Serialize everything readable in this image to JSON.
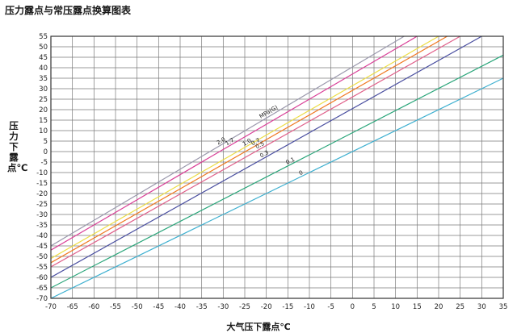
{
  "chart_data": {
    "type": "line",
    "title": "压力露点与常压露点换算图表",
    "xlabel": "大气压下露点℃",
    "ylabel": "压力下露点℃",
    "xlim": [
      -70,
      35
    ],
    "ylim": [
      -70,
      55
    ],
    "x_ticks": [
      -70,
      -65,
      -60,
      -55,
      -50,
      -45,
      -40,
      -35,
      -30,
      -25,
      -20,
      -15,
      -10,
      -5,
      0,
      5,
      10,
      15,
      20,
      25,
      30,
      35
    ],
    "y_ticks": [
      55,
      50,
      45,
      40,
      35,
      30,
      25,
      20,
      15,
      10,
      5,
      0,
      -5,
      -10,
      -15,
      -20,
      -25,
      -30,
      -35,
      -40,
      -45,
      -50,
      -55,
      -60,
      -65,
      -70
    ],
    "grid": true,
    "axis_unit_label": "MPa(G)",
    "series": [
      {
        "name": "0",
        "color": "#3fb0d0",
        "points": [
          [
            -70,
            -70
          ],
          [
            35,
            35
          ]
        ]
      },
      {
        "name": "0.1",
        "color": "#2aa57a",
        "points": [
          [
            -70,
            -65
          ],
          [
            35,
            46
          ]
        ]
      },
      {
        "name": "0.3",
        "color": "#4a4fa0",
        "points": [
          [
            -70,
            -60
          ],
          [
            30,
            55
          ]
        ]
      },
      {
        "name": "0.5",
        "color": "#e0608a",
        "points": [
          [
            -70,
            -55
          ],
          [
            25,
            55
          ]
        ]
      },
      {
        "name": "0.7",
        "color": "#f07820",
        "points": [
          [
            -70,
            -53
          ],
          [
            22,
            55
          ]
        ]
      },
      {
        "name": "1.0",
        "color": "#eddd45",
        "points": [
          [
            -70,
            -51
          ],
          [
            20,
            55
          ]
        ]
      },
      {
        "name": "1.7",
        "color": "#d94098",
        "points": [
          [
            -70,
            -47
          ],
          [
            15,
            55
          ]
        ]
      },
      {
        "name": "2.0",
        "color": "#9a98ac",
        "points": [
          [
            -70,
            -45
          ],
          [
            12,
            55
          ]
        ]
      }
    ]
  }
}
